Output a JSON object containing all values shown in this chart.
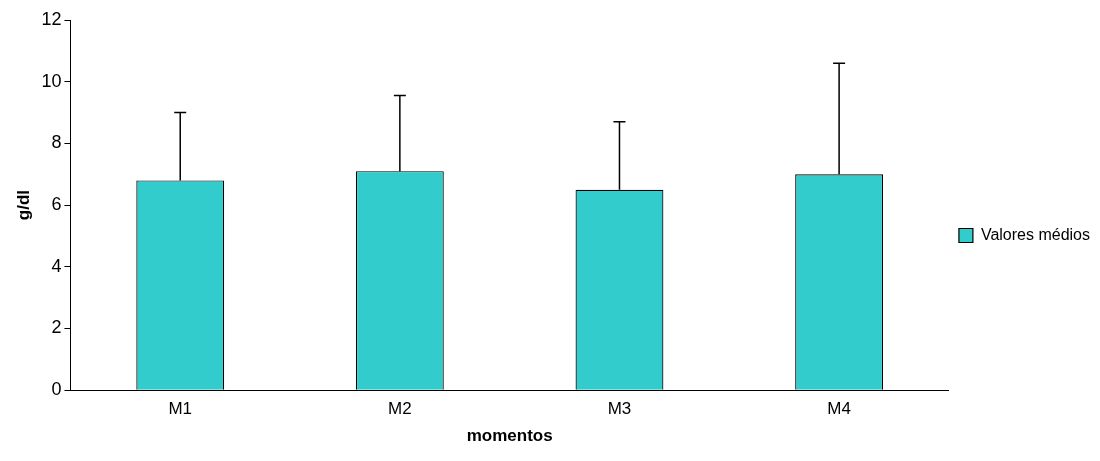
{
  "chart_data": {
    "type": "bar",
    "xlabel": "momentos",
    "ylabel": "g/dl",
    "categories": [
      "M1",
      "M2",
      "M3",
      "M4"
    ],
    "series": [
      {
        "name": "Valores médios",
        "color": "#33cccc",
        "values": [
          6.8,
          7.1,
          6.5,
          7.0
        ],
        "errors": [
          [
            6.8,
            9.0
          ],
          [
            7.1,
            9.55
          ],
          [
            6.5,
            8.7
          ],
          [
            7.0,
            10.6
          ]
        ]
      }
    ],
    "ylim": [
      0,
      12
    ],
    "yticks": [
      0,
      2,
      4,
      6,
      8,
      10,
      12
    ],
    "grid": false,
    "legend": "right"
  }
}
